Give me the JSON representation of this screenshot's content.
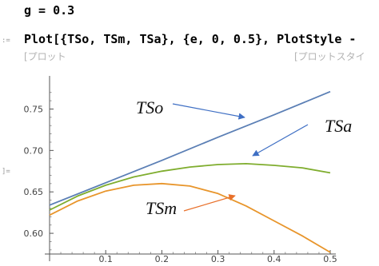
{
  "notebook": {
    "assignment": "g = 0.3",
    "input_marker": ":=",
    "output_marker": "]=",
    "plot_command": "Plot[{TSo, TSm, TSa}, {e, 0, 0.5}, PlotStyle -",
    "autocomplete_hints": [
      "[プロット",
      "[プロットスタイ"
    ]
  },
  "colors": {
    "TSo": "#5b7fb5",
    "TSa": "#7fad2e",
    "TSm": "#e8952b",
    "arrow_blue": "#3f6fc4",
    "arrow_orange": "#e8702a"
  },
  "chart_data": {
    "type": "line",
    "x_ticks": [
      "0.1",
      "0.2",
      "0.3",
      "0.4",
      "0.5"
    ],
    "y_ticks": [
      "0.60",
      "0.65",
      "0.70",
      "0.75"
    ],
    "xlim": [
      0,
      0.5
    ],
    "ylim": [
      0.575,
      0.79
    ],
    "grid": false,
    "annotations": [
      {
        "text": "TSo",
        "series": "TSo"
      },
      {
        "text": "TSa",
        "series": "TSa"
      },
      {
        "text": "TSm",
        "series": "TSm"
      }
    ],
    "series": [
      {
        "name": "TSo",
        "color": "#5b7fb5",
        "x": [
          0,
          0.1,
          0.2,
          0.3,
          0.4,
          0.5
        ],
        "y": [
          0.634,
          0.661,
          0.688,
          0.716,
          0.743,
          0.771
        ]
      },
      {
        "name": "TSa",
        "color": "#7fad2e",
        "x": [
          0,
          0.05,
          0.1,
          0.15,
          0.2,
          0.25,
          0.3,
          0.35,
          0.4,
          0.45,
          0.5
        ],
        "y": [
          0.628,
          0.645,
          0.658,
          0.668,
          0.675,
          0.68,
          0.683,
          0.684,
          0.682,
          0.679,
          0.673
        ]
      },
      {
        "name": "TSm",
        "color": "#e8952b",
        "x": [
          0,
          0.05,
          0.1,
          0.15,
          0.2,
          0.25,
          0.3,
          0.35,
          0.4,
          0.45,
          0.5
        ],
        "y": [
          0.622,
          0.639,
          0.651,
          0.658,
          0.66,
          0.657,
          0.648,
          0.633,
          0.615,
          0.597,
          0.577
        ]
      }
    ]
  }
}
